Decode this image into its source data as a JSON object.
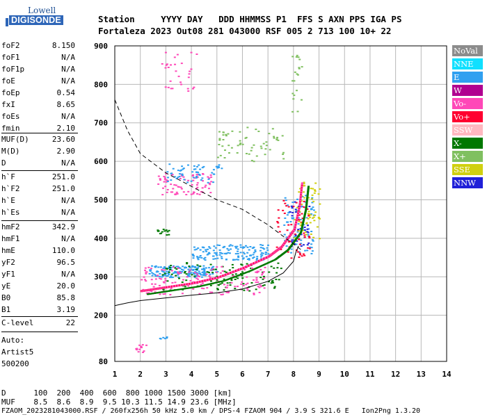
{
  "logo": {
    "line1": "Lowell",
    "line2": "DIGISONDE"
  },
  "header": {
    "line1": "Station     YYYY DAY   DDD HHMMSS P1  FFS S AXN PPS IGA PS",
    "line2": "Fortaleza 2023 Out08 281 043000 RSF 005 2 713 100 10+ 22"
  },
  "params": {
    "g1": [
      {
        "name": "foF2",
        "value": "8.150"
      },
      {
        "name": "foF1",
        "value": "N/A"
      },
      {
        "name": "foF1p",
        "value": "N/A"
      },
      {
        "name": "foE",
        "value": "N/A"
      },
      {
        "name": "foEp",
        "value": "0.54"
      },
      {
        "name": "fxI",
        "value": "8.65"
      },
      {
        "name": "foEs",
        "value": "N/A"
      },
      {
        "name": "fmin",
        "value": "2.10"
      }
    ],
    "g2": [
      {
        "name": "MUF(D)",
        "value": "23.60"
      },
      {
        "name": "M(D)",
        "value": "2.90"
      },
      {
        "name": "D",
        "value": "N/A"
      }
    ],
    "g3": [
      {
        "name": "h`F",
        "value": "251.0"
      },
      {
        "name": "h`F2",
        "value": "251.0"
      },
      {
        "name": "h`E",
        "value": "N/A"
      },
      {
        "name": "h`Es",
        "value": "N/A"
      }
    ],
    "g4": [
      {
        "name": "hmF2",
        "value": "342.9"
      },
      {
        "name": "hmF1",
        "value": "N/A"
      },
      {
        "name": "hmE",
        "value": "110.0"
      },
      {
        "name": "yF2",
        "value": "96.5"
      },
      {
        "name": "yF1",
        "value": "N/A"
      },
      {
        "name": "yE",
        "value": "20.0"
      },
      {
        "name": "B0",
        "value": "85.8"
      },
      {
        "name": "B1",
        "value": "3.19"
      }
    ],
    "g5": [
      {
        "name": "C-level",
        "value": "22"
      }
    ],
    "auto": [
      "Auto:",
      "Artist5",
      "500200"
    ]
  },
  "legend": [
    {
      "label": "NoVal",
      "color": "#8c8c8c"
    },
    {
      "label": "NNE",
      "color": "#10e0ff"
    },
    {
      "label": "E",
      "color": "#30a0f0"
    },
    {
      "label": "W",
      "color": "#b00090"
    },
    {
      "label": "Vo-",
      "color": "#ff48b8"
    },
    {
      "label": "Vo+",
      "color": "#ff0030"
    },
    {
      "label": "SSW",
      "color": "#ffb8c0"
    },
    {
      "label": "X-",
      "color": "#007800"
    },
    {
      "label": "X+",
      "color": "#80c060"
    },
    {
      "label": "SSE",
      "color": "#d0d010"
    },
    {
      "label": "NNW",
      "color": "#2020d8"
    }
  ],
  "footer": {
    "line1": "D      100  200  400  600  800 1000 1500 3000 [km]",
    "line2": "MUF    8.5  8.6  8.9  9.5 10.3 11.5 14.9 23.6 [MHz]",
    "line3": "FZAOM_2023281043000.RSF / 260fx256h 50 kHz 5.0 km / DPS-4 FZAOM 904 / 3.9 S 321.6 E   Ion2Png 1.3.20"
  },
  "chart_data": {
    "type": "scatter",
    "xlim": [
      1,
      14
    ],
    "ylim": [
      80,
      900
    ],
    "x_ticks": [
      "1",
      "2",
      "3",
      "4",
      "5",
      "6",
      "7",
      "8",
      "9",
      "10",
      "11",
      "12",
      "13",
      "14"
    ],
    "y_ticks": [
      "80",
      "200",
      "300",
      "400",
      "500",
      "600",
      "700",
      "800",
      "900"
    ],
    "grid": true,
    "x_ticks_val": [
      1,
      2,
      3,
      4,
      5,
      6,
      7,
      8,
      9,
      10,
      11,
      12,
      13,
      14
    ],
    "y_ticks_val": [
      80,
      200,
      300,
      400,
      500,
      600,
      700,
      800,
      900
    ],
    "profile_curve": {
      "x": [
        1.0,
        1.5,
        2.0,
        3.0,
        4.0,
        5.0,
        6.0,
        7.0,
        7.6,
        8.0,
        8.1,
        8.2
      ],
      "y": [
        225,
        232,
        238,
        245,
        252,
        258,
        268,
        288,
        310,
        340,
        365,
        380
      ]
    },
    "muf_curve": {
      "x": [
        1.0,
        1.5,
        2.0,
        3.0,
        4.0,
        5.0,
        6.0,
        7.0,
        7.5,
        8.0,
        8.3
      ],
      "y": [
        760,
        680,
        620,
        570,
        535,
        500,
        475,
        435,
        410,
        385,
        370
      ]
    },
    "o_trace": {
      "x": [
        2.0,
        2.5,
        3.0,
        4.0,
        5.0,
        6.0,
        7.0,
        7.5,
        8.0,
        8.2,
        8.3
      ],
      "y": [
        260,
        265,
        270,
        280,
        295,
        320,
        350,
        375,
        420,
        480,
        540
      ]
    },
    "clusters": [
      {
        "series": "E",
        "xr": [
          2.3,
          5.0
        ],
        "yr": [
          300,
          330
        ],
        "n": 160
      },
      {
        "series": "E",
        "xr": [
          4.0,
          7.0
        ],
        "yr": [
          345,
          385
        ],
        "n": 140
      },
      {
        "series": "E",
        "xr": [
          7.6,
          8.8
        ],
        "yr": [
          360,
          520
        ],
        "n": 80
      },
      {
        "series": "X-",
        "xr": [
          2.8,
          7.5
        ],
        "yr": [
          265,
          340
        ],
        "n": 120
      },
      {
        "series": "Vo-",
        "xr": [
          2.0,
          7.0
        ],
        "yr": [
          255,
          330
        ],
        "n": 140
      },
      {
        "series": "Vo+",
        "xr": [
          7.2,
          8.6
        ],
        "yr": [
          350,
          500
        ],
        "n": 60
      },
      {
        "series": "SSE",
        "xr": [
          8.0,
          9.0
        ],
        "yr": [
          400,
          560
        ],
        "n": 60
      },
      {
        "series": "NNW",
        "xr": [
          7.8,
          8.6
        ],
        "yr": [
          380,
          500
        ],
        "n": 30
      },
      {
        "series": "Vo-",
        "xr": [
          2.6,
          4.8
        ],
        "yr": [
          515,
          570
        ],
        "n": 80
      },
      {
        "series": "E",
        "xr": [
          3.0,
          5.2
        ],
        "yr": [
          545,
          595
        ],
        "n": 60
      },
      {
        "series": "X+",
        "xr": [
          5.0,
          7.6
        ],
        "yr": [
          600,
          690
        ],
        "n": 60
      },
      {
        "series": "Vo-",
        "xr": [
          2.8,
          4.2
        ],
        "yr": [
          780,
          900
        ],
        "n": 30
      },
      {
        "series": "X-",
        "xr": [
          2.6,
          3.1
        ],
        "yr": [
          410,
          425
        ],
        "n": 14
      },
      {
        "series": "Vo-",
        "xr": [
          1.8,
          2.3
        ],
        "yr": [
          105,
          125
        ],
        "n": 14
      },
      {
        "series": "E",
        "xr": [
          2.7,
          3.1
        ],
        "yr": [
          135,
          145
        ],
        "n": 6
      },
      {
        "series": "X+",
        "xr": [
          7.9,
          8.3
        ],
        "yr": [
          730,
          880
        ],
        "n": 20
      }
    ]
  }
}
